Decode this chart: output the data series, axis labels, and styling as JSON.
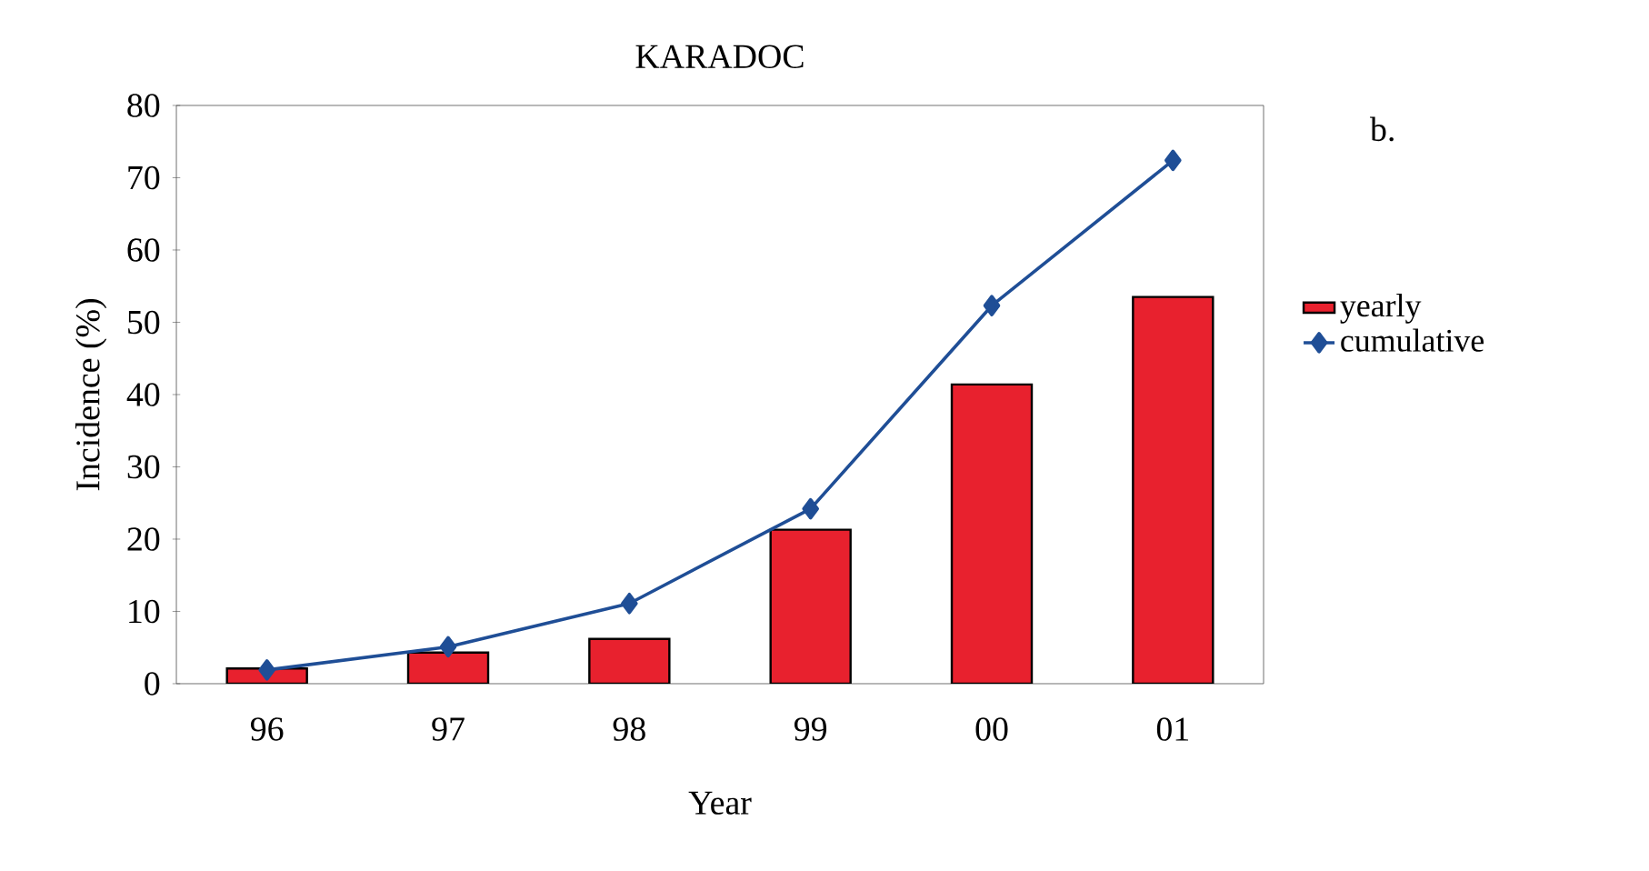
{
  "chart_data": {
    "type": "bar",
    "title": "KARADOC",
    "xlabel": "Year",
    "ylabel": "Incidence (%)",
    "categories": [
      "96",
      "97",
      "98",
      "99",
      "00",
      "01"
    ],
    "series": [
      {
        "name": "yearly",
        "type": "bar",
        "color": "#e8212e",
        "values": [
          2.1,
          4.3,
          6.2,
          21.3,
          41.4,
          53.5
        ]
      },
      {
        "name": "cumulative",
        "type": "line",
        "color": "#1f4e96",
        "marker": "diamond",
        "values": [
          1.9,
          5.1,
          11.1,
          24.2,
          52.3,
          72.4
        ]
      }
    ],
    "ylim": [
      0,
      80
    ],
    "yticks": [
      0,
      10,
      20,
      30,
      40,
      50,
      60,
      70,
      80
    ],
    "grid": false,
    "legend": "right",
    "annotations": [
      "b."
    ]
  }
}
